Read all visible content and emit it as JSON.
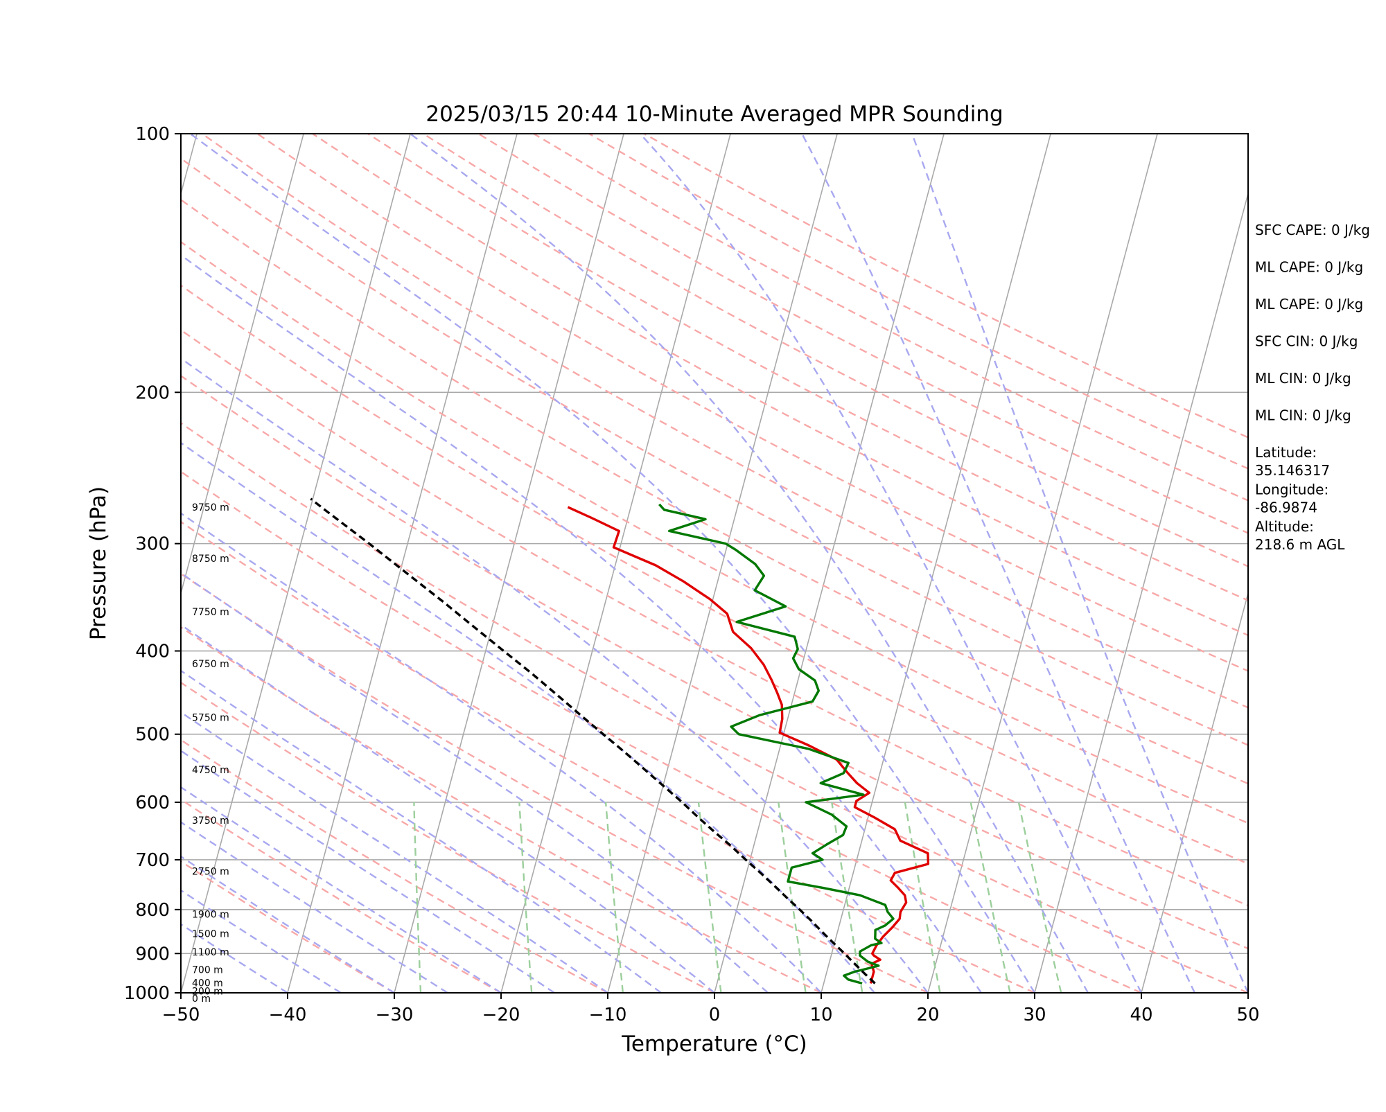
{
  "chart_data": {
    "type": "line",
    "title": "2025/03/15 20:44 10-Minute Averaged MPR Sounding",
    "xlabel": "Temperature (°C)",
    "ylabel": "Pressure (hPa)",
    "xlim": [
      -50,
      50
    ],
    "ylim": [
      1000,
      100
    ],
    "y_scale": "log",
    "grid": true,
    "x_ticks": [
      "−50",
      "−40",
      "−30",
      "−20",
      "−10",
      "0",
      "10",
      "20",
      "30",
      "40",
      "50"
    ],
    "y_ticks": [
      "100",
      "200",
      "300",
      "400",
      "500",
      "600",
      "700",
      "800",
      "900",
      "1000"
    ],
    "background_lines": {
      "isotherms_color": "#a9a9a9",
      "dry_adiabats_color": "#f8a8a8",
      "moist_adiabats_color": "#a8a8f0",
      "mixing_ratio_color": "#9ccf9c"
    },
    "series": [
      {
        "role": "temperature",
        "color": "#e00000",
        "points": [
          [
            975,
            14.4
          ],
          [
            945,
            14.4
          ],
          [
            925,
            14.0
          ],
          [
            915,
            14.7
          ],
          [
            905,
            14.0
          ],
          [
            900,
            13.8
          ],
          [
            880,
            14.0
          ],
          [
            860,
            14.4
          ],
          [
            840,
            15.0
          ],
          [
            820,
            15.5
          ],
          [
            805,
            15.4
          ],
          [
            785,
            15.7
          ],
          [
            770,
            15.4
          ],
          [
            755,
            14.6
          ],
          [
            740,
            13.7
          ],
          [
            725,
            13.9
          ],
          [
            708,
            16.8
          ],
          [
            688,
            16.5
          ],
          [
            665,
            13.6
          ],
          [
            645,
            12.8
          ],
          [
            625,
            10.6
          ],
          [
            608,
            8.5
          ],
          [
            598,
            8.5
          ],
          [
            585,
            9.5
          ],
          [
            570,
            8.1
          ],
          [
            555,
            7.0
          ],
          [
            535,
            5.6
          ],
          [
            515,
            2.6
          ],
          [
            498,
            -0.4
          ],
          [
            480,
            -0.5
          ],
          [
            462,
            -0.9
          ],
          [
            448,
            -1.6
          ],
          [
            432,
            -2.5
          ],
          [
            415,
            -3.6
          ],
          [
            397,
            -5.2
          ],
          [
            380,
            -7.3
          ],
          [
            362,
            -8.3
          ],
          [
            348,
            -10.3
          ],
          [
            332,
            -13.2
          ],
          [
            318,
            -16.2
          ],
          [
            303,
            -20.6
          ],
          [
            290,
            -20.5
          ],
          [
            280,
            -23.4
          ],
          [
            272,
            -25.9
          ]
        ]
      },
      {
        "role": "dewpoint",
        "color": "#007800",
        "points": [
          [
            975,
            13.6
          ],
          [
            965,
            12.2
          ],
          [
            955,
            11.7
          ],
          [
            945,
            12.6
          ],
          [
            938,
            13.6
          ],
          [
            930,
            14.7
          ],
          [
            920,
            13.6
          ],
          [
            905,
            12.7
          ],
          [
            895,
            12.6
          ],
          [
            880,
            13.5
          ],
          [
            875,
            14.4
          ],
          [
            865,
            13.7
          ],
          [
            855,
            13.6
          ],
          [
            845,
            13.5
          ],
          [
            835,
            14.3
          ],
          [
            820,
            14.9
          ],
          [
            805,
            14.2
          ],
          [
            790,
            13.8
          ],
          [
            780,
            12.5
          ],
          [
            770,
            11.2
          ],
          [
            755,
            7.6
          ],
          [
            742,
            4.1
          ],
          [
            730,
            4.1
          ],
          [
            715,
            4.1
          ],
          [
            700,
            6.8
          ],
          [
            688,
            5.7
          ],
          [
            672,
            6.8
          ],
          [
            655,
            8.1
          ],
          [
            640,
            8.2
          ],
          [
            620,
            6.5
          ],
          [
            600,
            3.8
          ],
          [
            588,
            9.0
          ],
          [
            570,
            4.7
          ],
          [
            555,
            6.6
          ],
          [
            540,
            6.8
          ],
          [
            520,
            2.7
          ],
          [
            500,
            -4.2
          ],
          [
            490,
            -5.1
          ],
          [
            475,
            -2.7
          ],
          [
            458,
            1.9
          ],
          [
            445,
            2.2
          ],
          [
            433,
            1.6
          ],
          [
            420,
            -0.2
          ],
          [
            408,
            -1.0
          ],
          [
            398,
            -0.8
          ],
          [
            385,
            -1.4
          ],
          [
            370,
            -7.2
          ],
          [
            355,
            -3.0
          ],
          [
            340,
            -6.3
          ],
          [
            327,
            -5.8
          ],
          [
            317,
            -6.9
          ],
          [
            305,
            -9.1
          ],
          [
            300,
            -10.2
          ],
          [
            290,
            -15.8
          ],
          [
            281,
            -12.7
          ],
          [
            274,
            -16.8
          ],
          [
            270,
            -17.4
          ]
        ]
      },
      {
        "role": "parcel",
        "color": "#000000",
        "dashed": true,
        "points": [
          [
            975,
            14.8
          ],
          [
            950,
            13.6
          ],
          [
            925,
            12.4
          ],
          [
            900,
            11.2
          ],
          [
            875,
            9.9
          ],
          [
            850,
            8.6
          ],
          [
            825,
            7.3
          ],
          [
            800,
            5.9
          ],
          [
            775,
            4.4
          ],
          [
            750,
            2.9
          ],
          [
            725,
            1.3
          ],
          [
            700,
            -0.4
          ],
          [
            675,
            -2.1
          ],
          [
            650,
            -4.0
          ],
          [
            625,
            -5.9
          ],
          [
            600,
            -7.8
          ],
          [
            575,
            -9.9
          ],
          [
            550,
            -12.1
          ],
          [
            525,
            -14.4
          ],
          [
            500,
            -16.9
          ],
          [
            475,
            -19.5
          ],
          [
            450,
            -22.2
          ],
          [
            425,
            -25.1
          ],
          [
            400,
            -28.3
          ],
          [
            375,
            -31.7
          ],
          [
            350,
            -35.3
          ],
          [
            325,
            -39.3
          ],
          [
            300,
            -43.6
          ],
          [
            275,
            -48.4
          ],
          [
            266,
            -50.2
          ]
        ]
      }
    ],
    "height_labels": [
      {
        "text": "9750 m",
        "p": 272
      },
      {
        "text": "8750 m",
        "p": 312
      },
      {
        "text": "7750 m",
        "p": 360
      },
      {
        "text": "6750 m",
        "p": 414
      },
      {
        "text": "5750 m",
        "p": 478
      },
      {
        "text": "4750 m",
        "p": 550
      },
      {
        "text": "3750 m",
        "p": 630
      },
      {
        "text": "2750 m",
        "p": 722
      },
      {
        "text": "1900 m",
        "p": 810
      },
      {
        "text": "1500 m",
        "p": 853
      },
      {
        "text": "1100 m",
        "p": 896
      },
      {
        "text": "700 m",
        "p": 940
      },
      {
        "text": "400 m",
        "p": 973
      },
      {
        "text": "200 m",
        "p": 995
      },
      {
        "text": "0 m",
        "p": 1015
      }
    ]
  },
  "side_panel": [
    [
      "SFC CAPE: 0 J/kg"
    ],
    [
      "ML CAPE: 0 J/kg"
    ],
    [
      "ML CAPE: 0 J/kg"
    ],
    [
      "SFC CIN: 0 J/kg"
    ],
    [
      "ML CIN: 0 J/kg"
    ],
    [
      "ML CIN: 0 J/kg"
    ],
    [
      "Latitude:",
      "35.146317"
    ],
    [
      "Longitude:",
      "-86.9874"
    ],
    [
      "Altitude:",
      "218.6 m AGL"
    ]
  ]
}
